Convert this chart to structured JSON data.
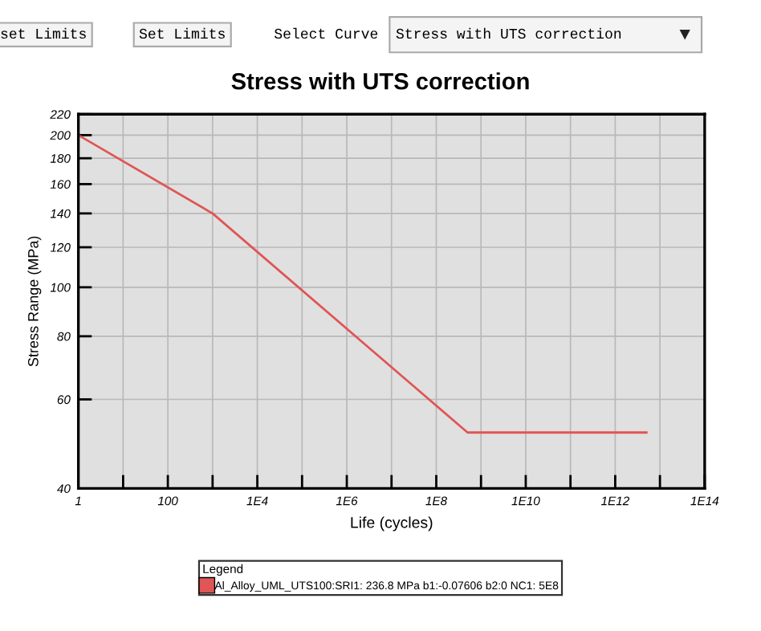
{
  "chart_data": {
    "type": "line",
    "title": "Stress with UTS correction",
    "xlabel": "Life (cycles)",
    "ylabel": "Stress Range (MPa)",
    "legend_title": "Legend",
    "annotations": [
      "set Limits",
      "Set Limits",
      "Select Curve",
      "Stress with UTS correction"
    ],
    "x": [
      1,
      1000,
      500000000,
      5000000000000
    ],
    "series": [
      {
        "name": "Al_Alloy_UML_UTS100:SRI1: 236.8 MPa b1:-0.07606 b2:0 NC1: 5E8",
        "color": "#e05555",
        "values": [
          200,
          140,
          51.6,
          51.6
        ]
      }
    ],
    "log": "xy",
    "xlim": [
      1,
      100000000000000
    ],
    "ylim": [
      40,
      220
    ],
    "xticks": [
      {
        "value": 1,
        "label": "1"
      },
      {
        "value": 10,
        "label": null
      },
      {
        "value": 100,
        "label": "100"
      },
      {
        "value": 1000,
        "label": null
      },
      {
        "value": 10000,
        "label": "1E4"
      },
      {
        "value": 100000,
        "label": null
      },
      {
        "value": 1000000,
        "label": "1E6"
      },
      {
        "value": 10000000,
        "label": null
      },
      {
        "value": 100000000,
        "label": "1E8"
      },
      {
        "value": 1000000000,
        "label": null
      },
      {
        "value": 10000000000,
        "label": "1E10"
      },
      {
        "value": 100000000000,
        "label": null
      },
      {
        "value": 1000000000000,
        "label": "1E12"
      },
      {
        "value": 10000000000000,
        "label": null
      },
      {
        "value": 100000000000000,
        "label": "1E14"
      }
    ],
    "yticks": [
      40,
      60,
      80,
      100,
      120,
      140,
      160,
      180,
      200,
      220
    ],
    "grid": true,
    "legend": "bottom",
    "marker": "none",
    "line_style": "solid"
  }
}
